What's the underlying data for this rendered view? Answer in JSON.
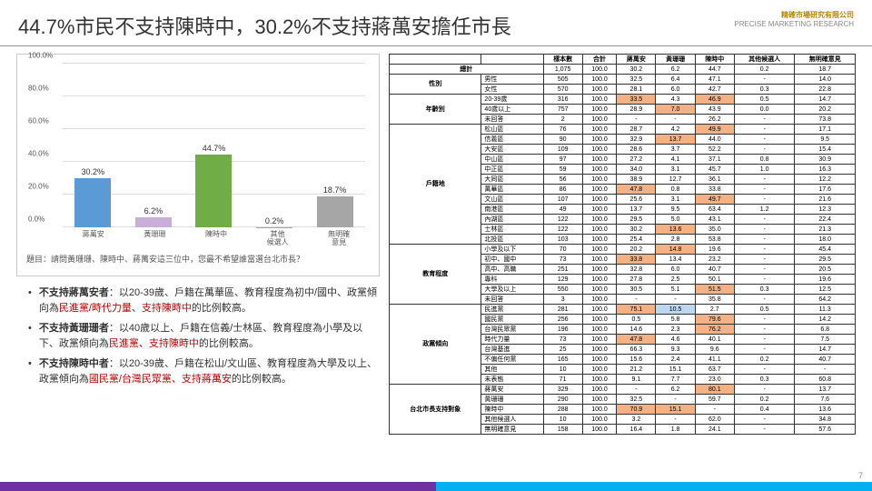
{
  "title": "44.7%市民不支持陳時中，30.2%不支持蔣萬安擔任市長",
  "logo": {
    "cn": "精確市場研究有限公司",
    "en": "PRECISE MARKETING RESEARCH"
  },
  "page_number": "7",
  "chart": {
    "type": "bar",
    "ylim": [
      0,
      100
    ],
    "ytick_step": 20,
    "y_ticks": [
      "0.0%",
      "20.0%",
      "40.0%",
      "60.0%",
      "80.0%",
      "100.0%"
    ],
    "categories": [
      "蔣萬安",
      "黃珊珊",
      "陳時中",
      "其他\n候選人",
      "無明確\n意見"
    ],
    "values": [
      30.2,
      6.2,
      44.7,
      0.2,
      18.7
    ],
    "labels": [
      "30.2%",
      "6.2%",
      "44.7%",
      "0.2%",
      "18.7%"
    ],
    "colors": [
      "#5b9bd5",
      "#c9aed9",
      "#70ad47",
      "#a6a6a6",
      "#a6a6a6"
    ],
    "grid_color": "#dddddd",
    "question": "題目：請問黃珊珊、陳時中、蔣萬安這三位中，您最不希望誰當選台北市長？"
  },
  "bullets": [
    {
      "lead": "不支持蔣萬安者",
      "body1": "：以20-39歲、戶籍在萬華區、教育程度為初中/國中、政黨傾向為",
      "red": "民進黨/時代力量、支持陳時中",
      "body2": "的比例較高。"
    },
    {
      "lead": "不支持黃珊珊者",
      "body1": "：以40歲以上、戶籍在信義/士林區、教育程度為小學及以下、政黨傾向為",
      "red": "民進黨、支持陳時中",
      "body2": "的比例較高。"
    },
    {
      "lead": "不支持陳時中者",
      "body1": "：以20-39歲、戶籍在松山/文山區、教育程度為大學及以上、政黨傾向為",
      "red": "國民黨/台灣民眾黨、支持蔣萬安",
      "body2": "的比例較高。"
    }
  ],
  "table": {
    "headers": [
      "",
      "",
      "樣本數",
      "合計",
      "蔣萬安",
      "黃珊珊",
      "陳時中",
      "其他候選人",
      "無明確意見"
    ],
    "groups": [
      {
        "name": "",
        "rows": [
          {
            "label": "總計",
            "c": [
              "1,075",
              "100.0",
              "30.2",
              "6.2",
              "44.7",
              "0.2",
              "18.7"
            ],
            "hl": {}
          }
        ],
        "rowspan": 1,
        "noHead": true
      },
      {
        "name": "性別",
        "rows": [
          {
            "label": "男性",
            "c": [
              "505",
              "100.0",
              "32.5",
              "6.4",
              "47.1",
              "-",
              "14.0"
            ],
            "hl": {}
          },
          {
            "label": "女性",
            "c": [
              "570",
              "100.0",
              "28.1",
              "6.0",
              "42.7",
              "0.3",
              "22.8"
            ],
            "hl": {}
          }
        ]
      },
      {
        "name": "年齡別",
        "rows": [
          {
            "label": "20-39歲",
            "c": [
              "316",
              "100.0",
              "33.5",
              "4.3",
              "46.9",
              "0.5",
              "14.7"
            ],
            "hl": {
              "2": "or",
              "4": "or"
            }
          },
          {
            "label": "40歲以上",
            "c": [
              "757",
              "100.0",
              "28.9",
              "7.0",
              "43.9",
              "0.0",
              "20.2"
            ],
            "hl": {
              "3": "or"
            }
          },
          {
            "label": "未回答",
            "c": [
              "2",
              "100.0",
              "-",
              "-",
              "26.2",
              "-",
              "73.8"
            ],
            "hl": {}
          }
        ]
      },
      {
        "name": "戶籍地",
        "rows": [
          {
            "label": "松山區",
            "c": [
              "76",
              "100.0",
              "28.7",
              "4.2",
              "49.9",
              "-",
              "17.1"
            ],
            "hl": {
              "4": "or"
            }
          },
          {
            "label": "信義區",
            "c": [
              "90",
              "100.0",
              "32.9",
              "13.7",
              "44.0",
              "-",
              "9.5"
            ],
            "hl": {
              "3": "or"
            }
          },
          {
            "label": "大安區",
            "c": [
              "109",
              "100.0",
              "28.6",
              "3.7",
              "52.2",
              "-",
              "15.4"
            ],
            "hl": {}
          },
          {
            "label": "中山區",
            "c": [
              "97",
              "100.0",
              "27.2",
              "4.1",
              "37.1",
              "0.8",
              "30.9"
            ],
            "hl": {}
          },
          {
            "label": "中正區",
            "c": [
              "59",
              "100.0",
              "34.0",
              "3.1",
              "45.7",
              "1.0",
              "16.3"
            ],
            "hl": {}
          },
          {
            "label": "大同區",
            "c": [
              "56",
              "100.0",
              "38.9",
              "12.7",
              "36.1",
              "-",
              "12.2"
            ],
            "hl": {}
          },
          {
            "label": "萬華區",
            "c": [
              "86",
              "100.0",
              "47.8",
              "0.8",
              "33.8",
              "-",
              "17.6"
            ],
            "hl": {
              "2": "or"
            }
          },
          {
            "label": "文山區",
            "c": [
              "107",
              "100.0",
              "25.6",
              "3.1",
              "49.7",
              "-",
              "21.6"
            ],
            "hl": {
              "4": "or"
            }
          },
          {
            "label": "南港區",
            "c": [
              "49",
              "100.0",
              "13.7",
              "9.5",
              "63.4",
              "1.2",
              "12.3"
            ],
            "hl": {}
          },
          {
            "label": "內湖區",
            "c": [
              "122",
              "100.0",
              "29.5",
              "5.0",
              "43.1",
              "-",
              "22.4"
            ],
            "hl": {}
          },
          {
            "label": "士林區",
            "c": [
              "122",
              "100.0",
              "30.2",
              "13.6",
              "35.0",
              "-",
              "21.3"
            ],
            "hl": {
              "3": "or"
            }
          },
          {
            "label": "北投區",
            "c": [
              "103",
              "100.0",
              "25.4",
              "2.8",
              "53.8",
              "-",
              "18.0"
            ],
            "hl": {}
          }
        ]
      },
      {
        "name": "教育程度",
        "rows": [
          {
            "label": "小學及以下",
            "c": [
              "70",
              "100.0",
              "20.2",
              "14.8",
              "19.6",
              "-",
              "45.4"
            ],
            "hl": {
              "3": "or"
            }
          },
          {
            "label": "初中、國中",
            "c": [
              "73",
              "100.0",
              "33.8",
              "13.4",
              "23.2",
              "-",
              "29.5"
            ],
            "hl": {
              "2": "or"
            }
          },
          {
            "label": "高中、高職",
            "c": [
              "251",
              "100.0",
              "32.8",
              "6.0",
              "40.7",
              "-",
              "20.5"
            ],
            "hl": {}
          },
          {
            "label": "專科",
            "c": [
              "129",
              "100.0",
              "27.8",
              "2.5",
              "50.1",
              "-",
              "19.6"
            ],
            "hl": {}
          },
          {
            "label": "大學及以上",
            "c": [
              "550",
              "100.0",
              "30.5",
              "5.1",
              "51.5",
              "0.3",
              "12.5"
            ],
            "hl": {
              "4": "or"
            }
          },
          {
            "label": "未回答",
            "c": [
              "3",
              "100.0",
              "-",
              "-",
              "35.8",
              "-",
              "64.2"
            ],
            "hl": {}
          }
        ]
      },
      {
        "name": "政黨傾向",
        "rows": [
          {
            "label": "民進黨",
            "c": [
              "281",
              "100.0",
              "75.1",
              "10.5",
              "2.7",
              "0.5",
              "11.3"
            ],
            "hl": {
              "2": "or",
              "3": "bl"
            }
          },
          {
            "label": "國民黨",
            "c": [
              "256",
              "100.0",
              "0.5",
              "5.8",
              "79.6",
              "-",
              "14.2"
            ],
            "hl": {
              "4": "or"
            }
          },
          {
            "label": "台灣民眾黨",
            "c": [
              "196",
              "100.0",
              "14.6",
              "2.3",
              "76.2",
              "-",
              "6.8"
            ],
            "hl": {
              "4": "or"
            }
          },
          {
            "label": "時代力量",
            "c": [
              "73",
              "100.0",
              "47.8",
              "4.6",
              "40.1",
              "-",
              "7.5"
            ],
            "hl": {
              "2": "or"
            }
          },
          {
            "label": "台灣基進",
            "c": [
              "25",
              "100.0",
              "66.3",
              "9.3",
              "9.6",
              "-",
              "14.7"
            ],
            "hl": {}
          },
          {
            "label": "不偏任何黨",
            "c": [
              "165",
              "100.0",
              "15.6",
              "2.4",
              "41.1",
              "0.2",
              "40.7"
            ],
            "hl": {}
          },
          {
            "label": "其他",
            "c": [
              "10",
              "100.0",
              "21.2",
              "15.1",
              "63.7",
              "-",
              "-"
            ],
            "hl": {}
          },
          {
            "label": "未表態",
            "c": [
              "71",
              "100.0",
              "9.1",
              "7.7",
              "23.0",
              "0.3",
              "60.8"
            ],
            "hl": {}
          }
        ]
      },
      {
        "name": "台北市長支持對象",
        "rows": [
          {
            "label": "蔣萬安",
            "c": [
              "329",
              "100.0",
              "-",
              "6.2",
              "80.1",
              "-",
              "13.7"
            ],
            "hl": {
              "4": "or"
            }
          },
          {
            "label": "黃珊珊",
            "c": [
              "290",
              "100.0",
              "32.5",
              "-",
              "59.7",
              "0.2",
              "7.6"
            ],
            "hl": {}
          },
          {
            "label": "陳時中",
            "c": [
              "288",
              "100.0",
              "70.9",
              "15.1",
              "-",
              "0.4",
              "13.6"
            ],
            "hl": {
              "2": "or",
              "3": "or"
            }
          },
          {
            "label": "其他候選人",
            "c": [
              "10",
              "100.0",
              "3.2",
              "-",
              "62.0",
              "-",
              "34.8"
            ],
            "hl": {}
          },
          {
            "label": "無明確意見",
            "c": [
              "158",
              "100.0",
              "16.4",
              "1.8",
              "24.1",
              "-",
              "57.6"
            ],
            "hl": {}
          }
        ]
      }
    ]
  }
}
